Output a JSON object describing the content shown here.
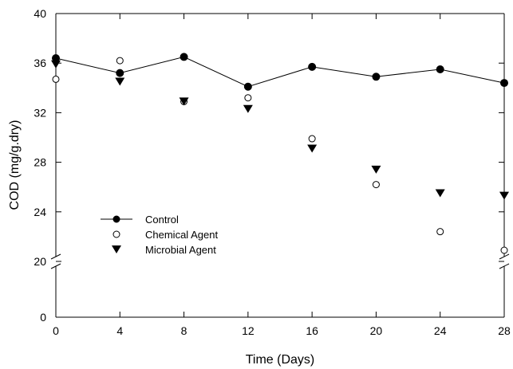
{
  "chart_data": {
    "type": "scatter",
    "title": "",
    "xlabel": "Time (Days)",
    "ylabel": "COD (mg/g.dry)",
    "x_ticks": [
      0,
      4,
      8,
      12,
      16,
      20,
      24,
      28
    ],
    "y_ticks_lower": [
      0,
      20
    ],
    "y_ticks_upper": [
      20,
      24,
      28,
      32,
      36,
      40
    ],
    "y_axis_break": true,
    "xlim": [
      0,
      28
    ],
    "ylim_lower": [
      0,
      20
    ],
    "ylim_upper": [
      20,
      40
    ],
    "legend_position": "lower-left",
    "series": [
      {
        "name": "Control",
        "marker": "filled-circle",
        "line": true,
        "color": "#000000",
        "x": [
          0,
          4,
          8,
          12,
          16,
          20,
          24,
          28
        ],
        "y": [
          36.4,
          35.2,
          36.5,
          34.1,
          35.7,
          34.9,
          35.5,
          34.4
        ]
      },
      {
        "name": "Chemical Agent",
        "marker": "open-circle",
        "line": false,
        "color": "#000000",
        "x": [
          0,
          4,
          8,
          12,
          16,
          20,
          24,
          28
        ],
        "y": [
          34.7,
          36.2,
          32.9,
          33.2,
          29.9,
          26.2,
          22.4,
          20.9
        ]
      },
      {
        "name": "Microbial Agent",
        "marker": "filled-triangle-down",
        "line": false,
        "color": "#000000",
        "x": [
          0,
          4,
          8,
          12,
          16,
          20,
          24,
          28
        ],
        "y": [
          35.9,
          34.5,
          32.9,
          32.3,
          29.1,
          27.4,
          25.5,
          25.3
        ]
      }
    ]
  }
}
